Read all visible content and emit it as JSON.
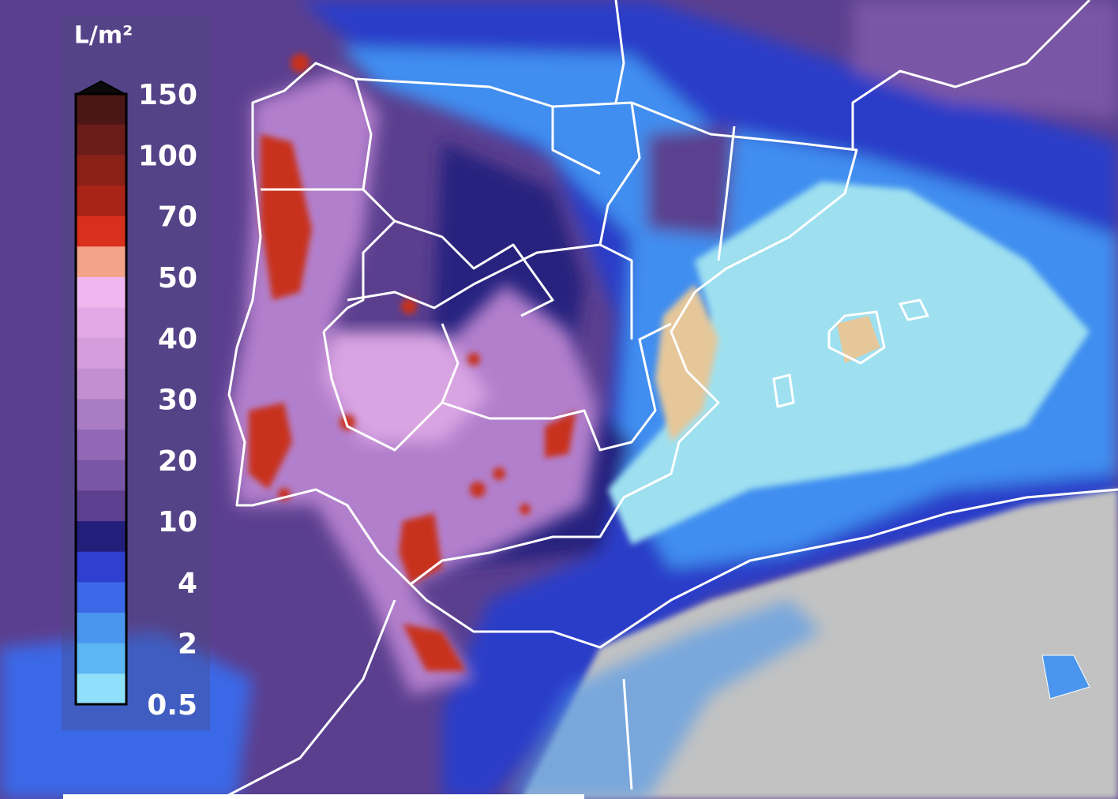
{
  "legend": {
    "title": "L/m²",
    "labels": [
      150,
      100,
      70,
      50,
      40,
      30,
      20,
      10,
      4,
      2,
      0.5
    ],
    "colors": [
      "#4a1616",
      "#6b1d1a",
      "#8a2118",
      "#a82416",
      "#d8301c",
      "#f2a38a",
      "#f0b6f0",
      "#e2a8e6",
      "#d69ddc",
      "#c38fd1",
      "#a97cc4",
      "#9068b5",
      "#7a56a6",
      "#5d3f90",
      "#221f7a",
      "#2f3fcf",
      "#3a68e6",
      "#4a96ee",
      "#5cb6f2",
      "#8fe0fa"
    ]
  }
}
